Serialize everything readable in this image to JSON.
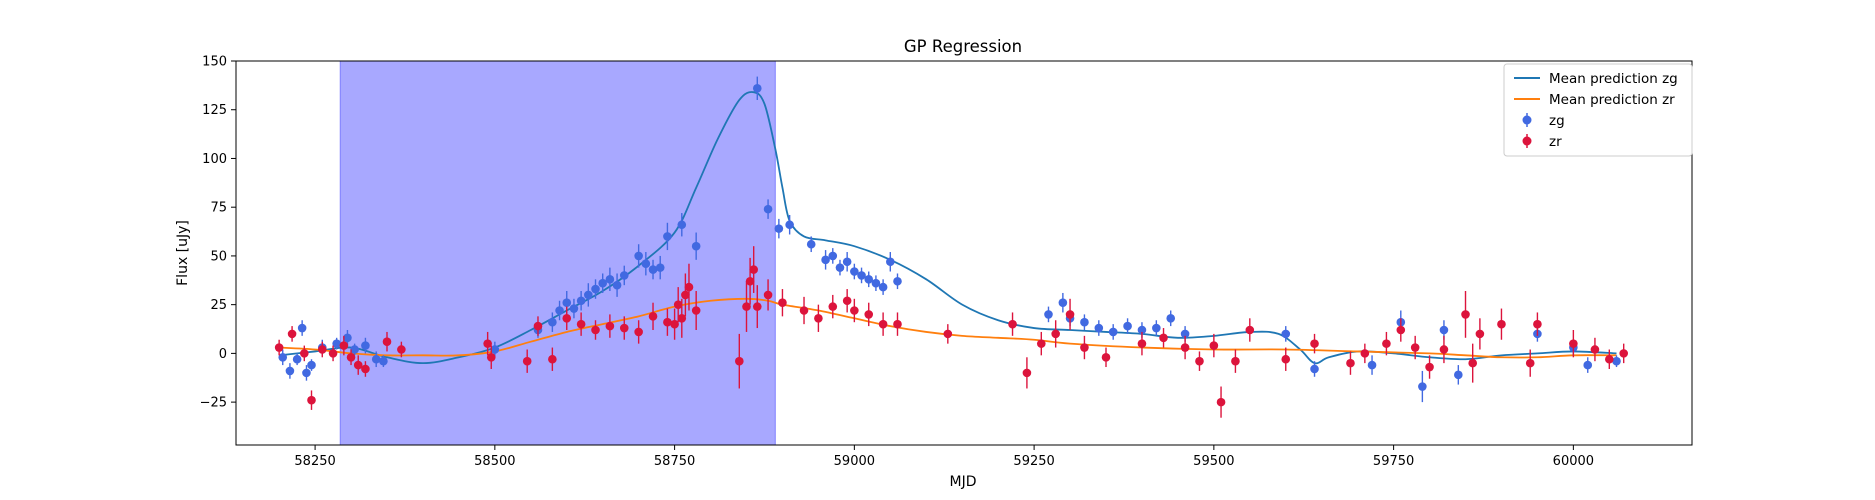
{
  "chart_data": {
    "type": "scatter",
    "title": "GP Regression",
    "xlabel": "MJD",
    "ylabel": "Flux [uJy]",
    "xlim": [
      58140,
      60165
    ],
    "ylim": [
      -47,
      150
    ],
    "xticks": [
      58250,
      58500,
      58750,
      59000,
      59250,
      59500,
      59750,
      60000
    ],
    "yticks": [
      -25,
      0,
      25,
      50,
      75,
      100,
      125,
      150
    ],
    "legend_position": "top-right",
    "shaded_region": {
      "x0": 58285,
      "x1": 58890,
      "color": "#a8a8ff"
    },
    "colors": {
      "zg_line": "#1f77b4",
      "zr_line": "#ff7f0e",
      "zg_points": "#4169e1",
      "zr_points": "#dc143c"
    },
    "series": [
      {
        "name": "Mean prediction zg",
        "kind": "line",
        "x": [
          58200,
          58250,
          58300,
          58350,
          58400,
          58450,
          58500,
          58550,
          58600,
          58650,
          58700,
          58750,
          58780,
          58810,
          58840,
          58860,
          58875,
          58890,
          58900,
          58910,
          58930,
          58960,
          59000,
          59050,
          59100,
          59150,
          59200,
          59250,
          59300,
          59350,
          59400,
          59450,
          59500,
          59550,
          59590,
          59620,
          59640,
          59660,
          59700,
          59750,
          59800,
          59850,
          59900,
          59950,
          60000,
          60060
        ],
        "y": [
          -1,
          1,
          3,
          -2,
          -5,
          -2,
          3,
          12,
          22,
          32,
          45,
          62,
          85,
          110,
          130,
          134,
          128,
          105,
          85,
          68,
          60,
          58,
          55,
          48,
          38,
          25,
          17,
          13,
          12,
          11,
          10,
          8,
          9,
          11,
          10,
          2,
          -5,
          -2,
          1,
          0,
          -2,
          -3,
          -1,
          0,
          1,
          0
        ]
      },
      {
        "name": "Mean prediction zr",
        "kind": "line",
        "x": [
          58200,
          58250,
          58300,
          58350,
          58400,
          58450,
          58500,
          58550,
          58600,
          58650,
          58700,
          58750,
          58800,
          58850,
          58880,
          58900,
          58950,
          59000,
          59050,
          59100,
          59150,
          59200,
          59250,
          59300,
          59400,
          59500,
          59600,
          59700,
          59800,
          59850,
          59900,
          59950,
          60000,
          60060
        ],
        "y": [
          3,
          2,
          0,
          -1,
          -1,
          -1,
          1,
          6,
          11,
          15,
          19,
          24,
          27,
          28,
          27,
          25,
          22,
          18,
          14,
          11,
          9,
          8,
          7,
          5,
          3,
          2,
          2,
          1,
          0,
          -1,
          -2,
          -2,
          -1,
          -1
        ]
      },
      {
        "name": "zg",
        "kind": "points",
        "x": [
          58205,
          58215,
          58225,
          58232,
          58238,
          58245,
          58260,
          58280,
          58295,
          58305,
          58320,
          58335,
          58345,
          58500,
          58560,
          58580,
          58590,
          58600,
          58610,
          58620,
          58630,
          58640,
          58650,
          58660,
          58670,
          58680,
          58700,
          58710,
          58720,
          58730,
          58740,
          58760,
          58780,
          58865,
          58880,
          58895,
          58910,
          58940,
          58960,
          58970,
          58980,
          58990,
          59000,
          59010,
          59020,
          59030,
          59040,
          59050,
          59060,
          59270,
          59290,
          59300,
          59320,
          59340,
          59360,
          59380,
          59400,
          59420,
          59440,
          59460,
          59600,
          59640,
          59720,
          59760,
          59790,
          59820,
          59840,
          59950,
          60000,
          60020,
          60060
        ],
        "y": [
          -2,
          -9,
          -3,
          13,
          -10,
          -6,
          3,
          5,
          8,
          2,
          4,
          -3,
          -4,
          2,
          12,
          16,
          22,
          26,
          23,
          27,
          30,
          33,
          36,
          38,
          35,
          40,
          50,
          46,
          43,
          44,
          60,
          66,
          55,
          136,
          74,
          64,
          66,
          56,
          48,
          50,
          44,
          47,
          42,
          40,
          38,
          36,
          34,
          47,
          37,
          20,
          26,
          18,
          16,
          13,
          11,
          14,
          12,
          13,
          18,
          10,
          10,
          -8,
          -6,
          16,
          -17,
          12,
          -11,
          10,
          3,
          -6,
          -4
        ],
        "err": [
          4,
          4,
          3,
          4,
          4,
          3,
          4,
          3,
          4,
          3,
          4,
          4,
          3,
          4,
          4,
          5,
          5,
          6,
          5,
          5,
          6,
          5,
          5,
          6,
          6,
          5,
          6,
          6,
          5,
          6,
          7,
          6,
          7,
          6,
          5,
          5,
          5,
          4,
          5,
          4,
          4,
          5,
          4,
          4,
          4,
          4,
          4,
          5,
          4,
          4,
          5,
          4,
          4,
          4,
          4,
          4,
          4,
          4,
          4,
          4,
          4,
          4,
          5,
          6,
          8,
          5,
          5,
          4,
          4,
          4,
          3
        ]
      },
      {
        "name": "zr",
        "kind": "points",
        "x": [
          58200,
          58218,
          58235,
          58245,
          58260,
          58275,
          58290,
          58300,
          58310,
          58320,
          58350,
          58370,
          58490,
          58495,
          58545,
          58560,
          58580,
          58600,
          58620,
          58640,
          58660,
          58680,
          58700,
          58720,
          58740,
          58750,
          58755,
          58760,
          58765,
          58770,
          58780,
          58840,
          58850,
          58855,
          58860,
          58865,
          58880,
          58900,
          58930,
          58950,
          58970,
          58990,
          59000,
          59020,
          59040,
          59060,
          59130,
          59220,
          59240,
          59260,
          59280,
          59300,
          59320,
          59350,
          59400,
          59430,
          59460,
          59480,
          59500,
          59510,
          59530,
          59550,
          59600,
          59640,
          59690,
          59710,
          59740,
          59760,
          59780,
          59800,
          59820,
          59850,
          59860,
          59870,
          59900,
          59940,
          59950,
          60000,
          60030,
          60050,
          60070
        ],
        "y": [
          3,
          10,
          0,
          -24,
          2,
          0,
          4,
          -2,
          -6,
          -8,
          6,
          2,
          5,
          -2,
          -4,
          14,
          -3,
          18,
          15,
          12,
          14,
          13,
          11,
          19,
          16,
          15,
          25,
          18,
          30,
          34,
          22,
          -4,
          24,
          37,
          43,
          24,
          30,
          26,
          22,
          18,
          24,
          27,
          22,
          20,
          15,
          15,
          10,
          15,
          -10,
          5,
          10,
          20,
          3,
          -2,
          5,
          8,
          3,
          -4,
          4,
          -25,
          -4,
          12,
          -3,
          5,
          -5,
          0,
          5,
          12,
          3,
          -7,
          2,
          20,
          -5,
          10,
          15,
          -5,
          15,
          5,
          2,
          -3,
          0
        ],
        "err": [
          4,
          4,
          4,
          5,
          4,
          4,
          5,
          4,
          5,
          4,
          5,
          4,
          6,
          6,
          6,
          5,
          6,
          6,
          6,
          5,
          6,
          6,
          6,
          7,
          7,
          8,
          9,
          10,
          11,
          12,
          10,
          14,
          13,
          12,
          12,
          11,
          8,
          7,
          7,
          7,
          6,
          6,
          6,
          6,
          6,
          6,
          5,
          6,
          8,
          6,
          7,
          8,
          6,
          5,
          6,
          5,
          6,
          5,
          6,
          8,
          6,
          6,
          6,
          5,
          6,
          5,
          6,
          6,
          6,
          6,
          7,
          12,
          10,
          8,
          8,
          7,
          6,
          7,
          6,
          5,
          5
        ]
      }
    ]
  }
}
